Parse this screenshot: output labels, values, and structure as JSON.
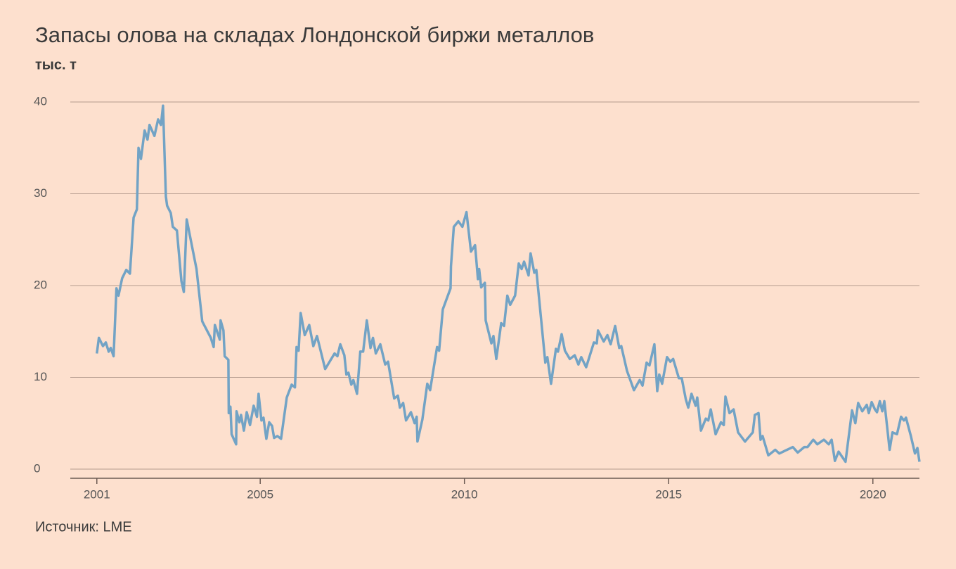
{
  "chart_data": {
    "type": "line",
    "title": "Запасы олова на складах Лондонской биржи металлов",
    "subtitle": "тыс. т",
    "source": "Источник: LME",
    "color": "#72a3c5",
    "grid": true,
    "xlim": [
      2000.35,
      2021.14
    ],
    "ylim": [
      -1,
      40
    ],
    "xticks": [
      2001,
      2005,
      2010,
      2015,
      2020
    ],
    "yticks": [
      0,
      10,
      20,
      30,
      40
    ],
    "x": [
      2001.0,
      2001.05,
      2001.15,
      2001.22,
      2001.29,
      2001.34,
      2001.41,
      2001.48,
      2001.53,
      2001.62,
      2001.72,
      2001.81,
      2001.9,
      2001.98,
      2002.02,
      2002.08,
      2002.17,
      2002.24,
      2002.29,
      2002.41,
      2002.5,
      2002.57,
      2002.62,
      2002.69,
      2002.72,
      2002.81,
      2002.86,
      2002.96,
      2003.07,
      2003.13,
      2003.2,
      2003.44,
      2003.58,
      2003.79,
      2003.86,
      2003.89,
      2004.01,
      2004.03,
      2004.1,
      2004.13,
      2004.22,
      2004.23,
      2004.27,
      2004.3,
      2004.41,
      2004.42,
      2004.49,
      2004.53,
      2004.6,
      2004.67,
      2004.75,
      2004.84,
      2004.92,
      2004.96,
      2005.03,
      2005.08,
      2005.15,
      2005.22,
      2005.29,
      2005.34,
      2005.42,
      2005.51,
      2005.65,
      2005.77,
      2005.85,
      2005.89,
      2005.94,
      2005.99,
      2006.09,
      2006.2,
      2006.3,
      2006.39,
      2006.59,
      2006.82,
      2006.89,
      2006.96,
      2007.06,
      2007.11,
      2007.16,
      2007.23,
      2007.28,
      2007.37,
      2007.45,
      2007.52,
      2007.61,
      2007.7,
      2007.76,
      2007.83,
      2007.94,
      2008.06,
      2008.13,
      2008.28,
      2008.37,
      2008.42,
      2008.5,
      2008.57,
      2008.69,
      2008.78,
      2008.83,
      2008.85,
      2008.97,
      2009.09,
      2009.16,
      2009.33,
      2009.38,
      2009.47,
      2009.66,
      2009.67,
      2009.74,
      2009.85,
      2009.95,
      2010.05,
      2010.16,
      2010.26,
      2010.33,
      2010.36,
      2010.41,
      2010.5,
      2010.52,
      2010.66,
      2010.71,
      2010.78,
      2010.9,
      2010.97,
      2011.05,
      2011.12,
      2011.24,
      2011.33,
      2011.4,
      2011.46,
      2011.57,
      2011.62,
      2011.71,
      2011.76,
      2011.98,
      2012.03,
      2012.12,
      2012.24,
      2012.29,
      2012.38,
      2012.46,
      2012.58,
      2012.7,
      2012.79,
      2012.86,
      2012.98,
      2013.17,
      2013.24,
      2013.27,
      2013.41,
      2013.5,
      2013.58,
      2013.69,
      2013.79,
      2013.84,
      2013.98,
      2014.15,
      2014.29,
      2014.36,
      2014.46,
      2014.53,
      2014.65,
      2014.72,
      2014.77,
      2014.84,
      2014.96,
      2015.04,
      2015.11,
      2015.25,
      2015.32,
      2015.42,
      2015.48,
      2015.56,
      2015.66,
      2015.7,
      2015.79,
      2015.91,
      2015.97,
      2016.03,
      2016.15,
      2016.28,
      2016.35,
      2016.39,
      2016.49,
      2016.59,
      2016.7,
      2016.87,
      2017.06,
      2017.11,
      2017.2,
      2017.25,
      2017.3,
      2017.44,
      2017.61,
      2017.71,
      2017.85,
      2018.04,
      2018.16,
      2018.32,
      2018.4,
      2018.54,
      2018.64,
      2018.8,
      2018.92,
      2018.99,
      2019.07,
      2019.16,
      2019.33,
      2019.49,
      2019.57,
      2019.64,
      2019.74,
      2019.85,
      2019.9,
      2019.97,
      2020.05,
      2020.1,
      2020.17,
      2020.23,
      2020.28,
      2020.41,
      2020.48,
      2020.59,
      2020.69,
      2020.76,
      2020.81,
      2020.93,
      2021.03,
      2021.09,
      2021.14
    ],
    "values": [
      12.6,
      14.3,
      13.4,
      13.8,
      12.8,
      13.2,
      12.3,
      19.7,
      18.9,
      20.8,
      21.7,
      21.3,
      27.4,
      28.3,
      35,
      33.8,
      36.9,
      35.9,
      37.5,
      36.3,
      38.1,
      37.5,
      39.6,
      29.7,
      28.7,
      27.9,
      26.4,
      26,
      20.5,
      19.3,
      27.2,
      21.8,
      16.1,
      14.3,
      13.3,
      15.7,
      14.1,
      16.2,
      15.1,
      12.3,
      11.9,
      6.1,
      6.8,
      3.8,
      2.7,
      6.3,
      5.1,
      5.9,
      4.2,
      6.2,
      4.8,
      6.9,
      5.7,
      8.2,
      5.3,
      5.6,
      3.3,
      5.1,
      4.7,
      3.4,
      3.6,
      3.3,
      7.8,
      9.2,
      8.9,
      13.3,
      12.9,
      17,
      14.6,
      15.7,
      13.4,
      14.5,
      10.9,
      12.6,
      12.3,
      13.6,
      12.4,
      10.3,
      10.5,
      9.2,
      9.7,
      8.2,
      12.8,
      12.8,
      16.2,
      13.2,
      14.3,
      12.6,
      13.6,
      11.4,
      11.7,
      7.7,
      8.0,
      6.7,
      7.2,
      5.3,
      6.2,
      5.0,
      5.7,
      3.0,
      5.4,
      9.3,
      8.6,
      13.3,
      12.9,
      17.4,
      19.7,
      22.1,
      26.4,
      27.0,
      26.4,
      28.0,
      23.7,
      24.4,
      20.7,
      21.8,
      19.8,
      20.3,
      16.2,
      13.7,
      14.5,
      12,
      15.9,
      15.6,
      18.9,
      17.9,
      18.9,
      22.4,
      21.8,
      22.6,
      21.1,
      23.5,
      21.4,
      21.7,
      11.6,
      12.2,
      9.3,
      13.1,
      12.8,
      14.7,
      12.9,
      12,
      12.4,
      11.4,
      12.2,
      11.1,
      13.8,
      13.7,
      15.1,
      13.9,
      14.6,
      13.6,
      15.6,
      13.2,
      13.4,
      10.7,
      8.6,
      9.7,
      9.1,
      11.6,
      11.3,
      13.6,
      8.5,
      10.3,
      9.3,
      12.2,
      11.7,
      12.0,
      9.9,
      9.9,
      7.6,
      6.7,
      8.2,
      6.9,
      7.8,
      4.2,
      5.5,
      5.3,
      6.5,
      3.8,
      5.1,
      4.8,
      7.9,
      6.1,
      6.5,
      4.0,
      3.0,
      4.0,
      5.9,
      6.1,
      3.2,
      3.6,
      1.5,
      2.1,
      1.7,
      2.0,
      2.4,
      1.8,
      2.4,
      2.4,
      3.2,
      2.7,
      3.2,
      2.7,
      3.2,
      0.9,
      1.9,
      0.8,
      6.4,
      5.0,
      7.2,
      6.3,
      7.0,
      6.1,
      7.3,
      6.5,
      6.2,
      7.4,
      6.3,
      7.4,
      2.1,
      4.0,
      3.8,
      5.7,
      5.3,
      5.6,
      3.6,
      1.7,
      2.3,
      0.8
    ]
  }
}
